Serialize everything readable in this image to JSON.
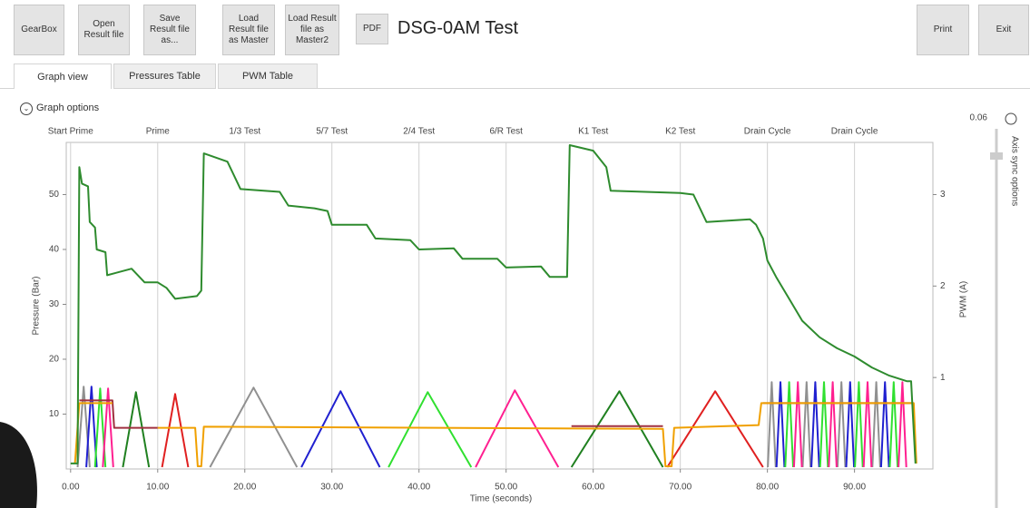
{
  "toolbar": {
    "buttons": [
      "GearBox",
      "Open Result file",
      "Save Result file as...",
      "Load Result file as Master",
      "Load Result file as Master2"
    ],
    "pdf": "PDF",
    "title": "DSG-0AM Test",
    "print": "Print",
    "exit": "Exit"
  },
  "tabs": [
    "Graph view",
    "Pressures Table",
    "PWM Table"
  ],
  "graph_options": "Graph options",
  "slider": {
    "value": "0.06",
    "label": "Axis sync options"
  },
  "chart_data": {
    "type": "line",
    "x_label": "Time (seconds)",
    "y_label": "Pressure (Bar)",
    "y2_label": "PWM (A)",
    "xlim": [
      -0.5,
      99
    ],
    "ylim": [
      0,
      59.5
    ],
    "y2lim": [
      0,
      3.57
    ],
    "xticks": [
      {
        "value": 0,
        "label": "0.00"
      },
      {
        "value": 10,
        "label": "10.00"
      },
      {
        "value": 20,
        "label": "20.00"
      },
      {
        "value": 30,
        "label": "30.00"
      },
      {
        "value": 40,
        "label": "40.00"
      },
      {
        "value": 50,
        "label": "50.00"
      },
      {
        "value": 60,
        "label": "60.00"
      },
      {
        "value": 70,
        "label": "70.00"
      },
      {
        "value": 80,
        "label": "80.00"
      },
      {
        "value": 90,
        "label": "90.00"
      }
    ],
    "yticks": [
      10,
      20,
      30,
      40,
      50
    ],
    "y2ticks": [
      1,
      2,
      3
    ],
    "sections": [
      {
        "x": 0,
        "label": "Start Prime"
      },
      {
        "x": 10,
        "label": "Prime"
      },
      {
        "x": 20,
        "label": "1/3 Test"
      },
      {
        "x": 30,
        "label": "5/7 Test"
      },
      {
        "x": 40,
        "label": "2/4 Test"
      },
      {
        "x": 50,
        "label": "6/R Test"
      },
      {
        "x": 60,
        "label": "K1 Test"
      },
      {
        "x": 70,
        "label": "K2 Test"
      },
      {
        "x": 80,
        "label": "Drain Cycle"
      },
      {
        "x": 90,
        "label": "Drain Cycle"
      }
    ],
    "series": [
      {
        "color": "#909090",
        "axis": "y2",
        "x": [
          0.8,
          1.5,
          2.2,
          2.3,
          16,
          21,
          26,
          26.3,
          80.05,
          80.5,
          80.95,
          81,
          84.05,
          84.5,
          84.95,
          85,
          88.05,
          88.5,
          88.95,
          89,
          92.05,
          92.5,
          92.95
        ],
        "values": [
          0.02,
          0.9,
          0.02,
          null,
          0.02,
          0.89,
          0.02,
          null,
          0.02,
          0.95,
          0.02,
          null,
          0.02,
          0.95,
          0.02,
          null,
          0.02,
          0.95,
          0.02,
          null,
          0.02,
          0.95,
          0.02
        ]
      },
      {
        "color": "#2020d0",
        "axis": "y2",
        "x": [
          1.8,
          2.4,
          3,
          3.1,
          26.5,
          31,
          35.5,
          35.6,
          81.05,
          81.5,
          81.95,
          82,
          85.05,
          85.5,
          85.95,
          86,
          89.05,
          89.5,
          89.95,
          90,
          93.05,
          93.5,
          93.95
        ],
        "values": [
          0.02,
          0.9,
          0.02,
          null,
          0.02,
          0.85,
          0.02,
          null,
          0.02,
          0.95,
          0.02,
          null,
          0.02,
          0.95,
          0.02,
          null,
          0.02,
          0.95,
          0.02,
          null,
          0.02,
          0.95,
          0.02
        ]
      },
      {
        "color": "#30e030",
        "axis": "y2",
        "x": [
          2.8,
          3.4,
          4,
          4.1,
          36.5,
          41,
          46,
          46.1,
          82.05,
          82.5,
          82.95,
          83,
          86.05,
          86.5,
          86.95,
          87,
          90.05,
          90.5,
          90.95,
          91,
          94.05,
          94.5,
          94.95
        ],
        "values": [
          0.02,
          0.88,
          0.02,
          null,
          0.02,
          0.84,
          0.02,
          null,
          0.02,
          0.95,
          0.02,
          null,
          0.02,
          0.95,
          0.02,
          null,
          0.02,
          0.95,
          0.02,
          null,
          0.02,
          0.95,
          0.02
        ]
      },
      {
        "color": "#ff2090",
        "axis": "y2",
        "x": [
          3.7,
          4.3,
          4.9,
          5,
          46.5,
          51,
          56,
          56.1,
          83.05,
          83.5,
          83.95,
          84,
          87.05,
          87.5,
          87.95,
          88,
          91.05,
          91.5,
          91.95,
          92,
          95.05,
          95.5,
          95.95
        ],
        "values": [
          0.02,
          0.88,
          0.02,
          null,
          0.02,
          0.86,
          0.02,
          null,
          0.02,
          0.95,
          0.02,
          null,
          0.02,
          0.95,
          0.02,
          null,
          0.02,
          0.95,
          0.02,
          null,
          0.02,
          0.95,
          0.02
        ]
      },
      {
        "color": "#208020",
        "axis": "y2",
        "x": [
          6,
          7.5,
          9,
          9.1,
          57.5,
          63,
          68
        ],
        "values": [
          0.02,
          0.84,
          0.02,
          null,
          0.02,
          0.85,
          0.02
        ]
      },
      {
        "color": "#e02020",
        "axis": "y2",
        "x": [
          10.5,
          12,
          13.5,
          13.6,
          68.5,
          74,
          79.5
        ],
        "values": [
          0.02,
          0.82,
          0.02,
          null,
          0.02,
          0.85,
          0.02
        ]
      },
      {
        "color": "#a03040",
        "axis": "y",
        "x": [
          1,
          4.8,
          5,
          10,
          10.5,
          57.5,
          68,
          68.5,
          79.5,
          96.8
        ],
        "values": [
          12.5,
          12.5,
          7.5,
          7.5,
          null,
          7.8,
          7.8,
          null,
          12,
          12
        ]
      },
      {
        "color": "#f0a000",
        "axis": "y",
        "x": [
          0.5,
          1,
          4.8,
          5,
          10,
          10.3,
          14.3,
          14.6,
          15,
          15.3,
          68,
          68.3,
          69,
          69.3,
          79,
          79.3,
          96.8,
          97.1
        ],
        "values": [
          1,
          12,
          12,
          null,
          7.5,
          7.5,
          7.5,
          0.5,
          0.5,
          7.7,
          7.3,
          0.5,
          0.5,
          7.5,
          8,
          12,
          12,
          1
        ]
      },
      {
        "color": "#2e8b2e",
        "axis": "y",
        "x": [
          0,
          0.8,
          1,
          1.3,
          2,
          2.2,
          2.8,
          3,
          4,
          4.2,
          7,
          8.5,
          10,
          11,
          12,
          14.5,
          15,
          15.3,
          18,
          19.5,
          24,
          25,
          28,
          29.5,
          30,
          34,
          35,
          39,
          40,
          44,
          45,
          49,
          50,
          54,
          55,
          57,
          57.3,
          60,
          61.5,
          62,
          70,
          71.5,
          73,
          78,
          78.7,
          79.5,
          80,
          81,
          82.5,
          84,
          86,
          88,
          90,
          92,
          94,
          96,
          96.5,
          96.7,
          97
        ],
        "values": [
          1,
          1,
          55,
          52,
          51.5,
          45,
          44,
          40,
          39.5,
          35.3,
          36.5,
          34,
          34,
          33,
          31,
          31.5,
          32.5,
          57.5,
          56,
          51,
          50.5,
          48,
          47.5,
          47,
          44.5,
          44.5,
          42,
          41.7,
          40,
          40.2,
          38.3,
          38.3,
          36.7,
          36.9,
          35,
          35,
          59,
          58,
          55,
          50.7,
          50.3,
          50,
          45,
          45.5,
          44.5,
          42,
          38,
          35,
          31,
          27,
          24,
          22,
          20.5,
          18.5,
          17,
          16,
          16,
          10,
          1
        ]
      }
    ]
  }
}
